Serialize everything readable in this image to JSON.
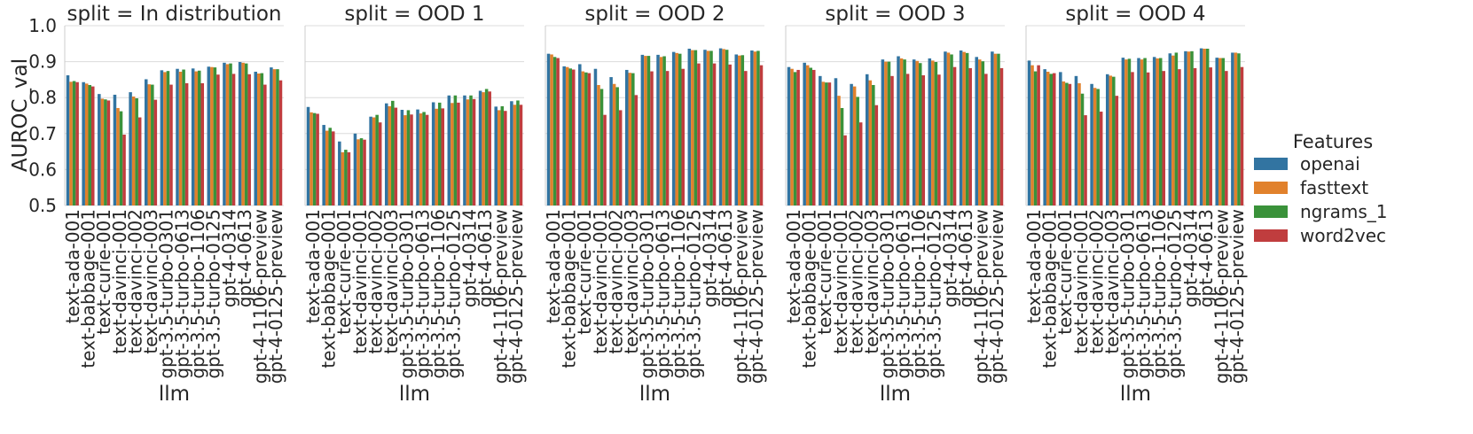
{
  "chart_data": {
    "type": "bar",
    "ylabel": "AUROC_val",
    "xlabel": "llm",
    "ylim": [
      0.5,
      1.0
    ],
    "yticks": [
      "0.5",
      "0.6",
      "0.7",
      "0.8",
      "0.9",
      "1.0"
    ],
    "grid": true,
    "categories": [
      "text-ada-001",
      "text-babbage-001",
      "text-curie-001",
      "text-davinci-001",
      "text-davinci-002",
      "text-davinci-003",
      "gpt-3.5-turbo-0301",
      "gpt-3.5-turbo-0613",
      "gpt-3.5-turbo-1106",
      "gpt-3.5-turbo-0125",
      "gpt-4-0314",
      "gpt-4-0613",
      "gpt-4-1106-preview",
      "gpt-4-0125-preview"
    ],
    "legend": {
      "title": "Features",
      "position": "right",
      "entries": [
        {
          "name": "openai",
          "color": "#3274a1"
        },
        {
          "name": "fasttext",
          "color": "#e1812c"
        },
        {
          "name": "ngrams_1",
          "color": "#3a923a"
        },
        {
          "name": "word2vec",
          "color": "#c03d3e"
        }
      ]
    },
    "panels": [
      {
        "title": "split = In distribution",
        "series": [
          {
            "name": "openai",
            "values": [
              0.862,
              0.843,
              0.81,
              0.808,
              0.815,
              0.851,
              0.876,
              0.88,
              0.881,
              0.886,
              0.897,
              0.899,
              0.872,
              0.884
            ]
          },
          {
            "name": "fasttext",
            "values": [
              0.844,
              0.839,
              0.797,
              0.771,
              0.803,
              0.837,
              0.871,
              0.872,
              0.873,
              0.885,
              0.893,
              0.897,
              0.867,
              0.879
            ]
          },
          {
            "name": "ngrams_1",
            "values": [
              0.846,
              0.835,
              0.795,
              0.762,
              0.798,
              0.836,
              0.874,
              0.878,
              0.875,
              0.884,
              0.895,
              0.895,
              0.868,
              0.879
            ]
          },
          {
            "name": "word2vec",
            "values": [
              0.843,
              0.831,
              0.792,
              0.697,
              0.745,
              0.794,
              0.836,
              0.84,
              0.84,
              0.864,
              0.866,
              0.865,
              0.836,
              0.848
            ]
          }
        ]
      },
      {
        "title": "split = OOD 1",
        "series": [
          {
            "name": "openai",
            "values": [
              0.774,
              0.724,
              0.678,
              0.7,
              0.747,
              0.784,
              0.766,
              0.767,
              0.787,
              0.806,
              0.806,
              0.819,
              0.775,
              0.79
            ]
          },
          {
            "name": "fasttext",
            "values": [
              0.759,
              0.708,
              0.648,
              0.684,
              0.745,
              0.776,
              0.751,
              0.756,
              0.769,
              0.785,
              0.795,
              0.815,
              0.765,
              0.78
            ]
          },
          {
            "name": "ngrams_1",
            "values": [
              0.757,
              0.716,
              0.655,
              0.687,
              0.752,
              0.791,
              0.765,
              0.76,
              0.786,
              0.806,
              0.806,
              0.824,
              0.776,
              0.792
            ]
          },
          {
            "name": "word2vec",
            "values": [
              0.755,
              0.706,
              0.648,
              0.683,
              0.731,
              0.772,
              0.753,
              0.752,
              0.77,
              0.786,
              0.796,
              0.817,
              0.763,
              0.78
            ]
          }
        ]
      },
      {
        "title": "split = OOD 2",
        "series": [
          {
            "name": "openai",
            "values": [
              0.922,
              0.887,
              0.893,
              0.88,
              0.857,
              0.877,
              0.919,
              0.919,
              0.927,
              0.936,
              0.933,
              0.937,
              0.92,
              0.931
            ]
          },
          {
            "name": "fasttext",
            "values": [
              0.92,
              0.885,
              0.873,
              0.835,
              0.838,
              0.869,
              0.916,
              0.913,
              0.924,
              0.932,
              0.93,
              0.935,
              0.917,
              0.928
            ]
          },
          {
            "name": "ngrams_1",
            "values": [
              0.913,
              0.881,
              0.87,
              0.824,
              0.829,
              0.868,
              0.916,
              0.915,
              0.922,
              0.932,
              0.93,
              0.933,
              0.918,
              0.93
            ]
          },
          {
            "name": "word2vec",
            "values": [
              0.91,
              0.878,
              0.868,
              0.752,
              0.765,
              0.807,
              0.873,
              0.874,
              0.88,
              0.895,
              0.895,
              0.892,
              0.874,
              0.89
            ]
          }
        ]
      },
      {
        "title": "split = OOD 3",
        "series": [
          {
            "name": "openai",
            "values": [
              0.885,
              0.897,
              0.86,
              0.854,
              0.838,
              0.865,
              0.906,
              0.915,
              0.906,
              0.909,
              0.928,
              0.931,
              0.913,
              0.928
            ]
          },
          {
            "name": "fasttext",
            "values": [
              0.88,
              0.89,
              0.844,
              0.805,
              0.831,
              0.848,
              0.9,
              0.909,
              0.902,
              0.903,
              0.925,
              0.927,
              0.906,
              0.922
            ]
          },
          {
            "name": "ngrams_1",
            "values": [
              0.871,
              0.883,
              0.842,
              0.771,
              0.802,
              0.835,
              0.9,
              0.906,
              0.896,
              0.899,
              0.92,
              0.924,
              0.901,
              0.922
            ]
          },
          {
            "name": "word2vec",
            "values": [
              0.877,
              0.877,
              0.842,
              0.695,
              0.731,
              0.779,
              0.86,
              0.866,
              0.862,
              0.864,
              0.885,
              0.882,
              0.866,
              0.882
            ]
          }
        ]
      },
      {
        "title": "split = OOD 4",
        "series": [
          {
            "name": "openai",
            "values": [
              0.903,
              0.879,
              0.871,
              0.86,
              0.838,
              0.865,
              0.911,
              0.91,
              0.913,
              0.923,
              0.929,
              0.937,
              0.911,
              0.925
            ]
          },
          {
            "name": "fasttext",
            "values": [
              0.89,
              0.872,
              0.845,
              0.84,
              0.827,
              0.861,
              0.906,
              0.906,
              0.909,
              0.917,
              0.928,
              0.936,
              0.91,
              0.925
            ]
          },
          {
            "name": "ngrams_1",
            "values": [
              0.873,
              0.866,
              0.841,
              0.811,
              0.824,
              0.858,
              0.908,
              0.91,
              0.91,
              0.925,
              0.929,
              0.936,
              0.91,
              0.923
            ]
          },
          {
            "name": "word2vec",
            "values": [
              0.89,
              0.868,
              0.838,
              0.751,
              0.761,
              0.805,
              0.871,
              0.87,
              0.874,
              0.879,
              0.882,
              0.884,
              0.874,
              0.885
            ]
          }
        ]
      }
    ]
  }
}
